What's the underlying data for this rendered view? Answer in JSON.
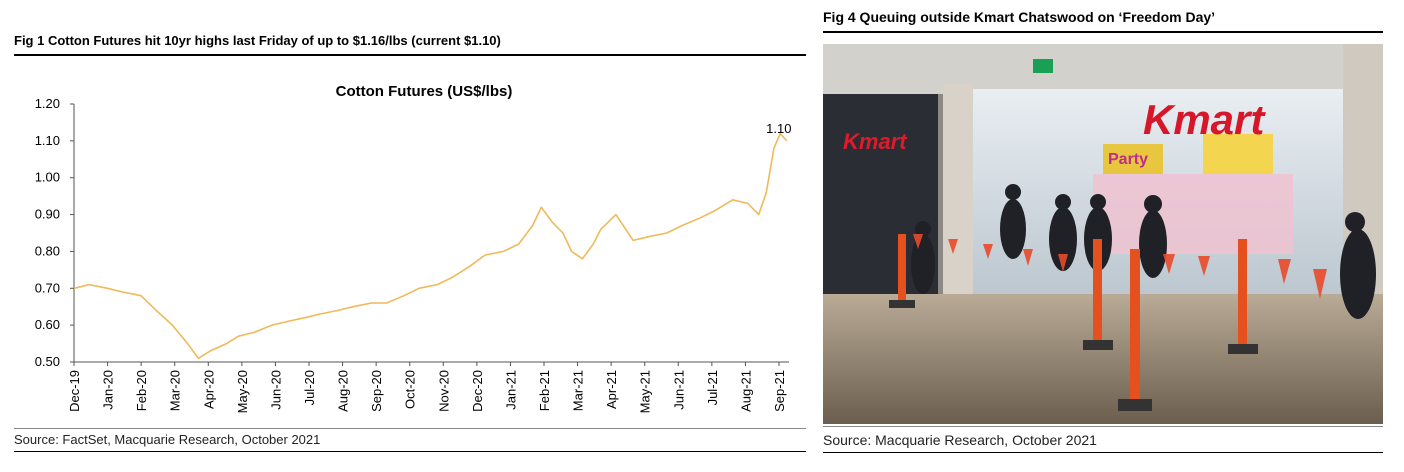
{
  "fig1": {
    "title": "Fig 1   Cotton Futures hit 10yr highs last Friday of up to $1.16/lbs (current $1.10)",
    "source": "Source: FactSet, Macquarie Research, October 2021"
  },
  "fig4": {
    "title": "Fig 4   Queuing outside Kmart Chatswood on ‘Freedom Day’",
    "source": "Source: Macquarie Research, October 2021",
    "photo_signs": {
      "kmart": "Kmart",
      "party": "Party",
      "store": "Kmart"
    }
  },
  "chart_data": {
    "type": "line",
    "title": "Cotton Futures (US$/lbs)",
    "xlabel": "",
    "ylabel": "",
    "ylim": [
      0.5,
      1.2
    ],
    "yticks": [
      "0.50",
      "0.60",
      "0.70",
      "0.80",
      "0.90",
      "1.00",
      "1.10",
      "1.20"
    ],
    "xticks": [
      "Dec-19",
      "Jan-20",
      "Feb-20",
      "Mar-20",
      "Apr-20",
      "May-20",
      "Jun-20",
      "Jul-20",
      "Aug-20",
      "Sep-20",
      "Oct-20",
      "Nov-20",
      "Dec-20",
      "Jan-21",
      "Feb-21",
      "Mar-21",
      "Apr-21",
      "May-21",
      "Jun-21",
      "Jul-21",
      "Aug-21",
      "Sep-21"
    ],
    "last_label": "1.10",
    "line_color": "#F0B95A",
    "grid": false,
    "series": [
      {
        "x": [
          "2019-12-01",
          "2019-12-15",
          "2020-01-01",
          "2020-01-15",
          "2020-02-01",
          "2020-02-15",
          "2020-03-01",
          "2020-03-15",
          "2020-03-25",
          "2020-04-05",
          "2020-04-20",
          "2020-05-01",
          "2020-05-15",
          "2020-06-01",
          "2020-06-15",
          "2020-07-01",
          "2020-07-15",
          "2020-08-01",
          "2020-08-15",
          "2020-09-01",
          "2020-09-15",
          "2020-10-01",
          "2020-10-15",
          "2020-11-01",
          "2020-11-15",
          "2020-12-01",
          "2020-12-15",
          "2021-01-01",
          "2021-01-15",
          "2021-01-28",
          "2021-02-05",
          "2021-02-15",
          "2021-02-25",
          "2021-03-05",
          "2021-03-15",
          "2021-03-25",
          "2021-04-01",
          "2021-04-15",
          "2021-05-01",
          "2021-05-15",
          "2021-06-01",
          "2021-06-15",
          "2021-07-01",
          "2021-07-15",
          "2021-08-01",
          "2021-08-15",
          "2021-08-25",
          "2021-09-01",
          "2021-09-08",
          "2021-09-14",
          "2021-09-20"
        ],
        "values": [
          0.7,
          0.71,
          0.7,
          0.69,
          0.68,
          0.64,
          0.6,
          0.55,
          0.51,
          0.53,
          0.55,
          0.57,
          0.58,
          0.6,
          0.61,
          0.62,
          0.63,
          0.64,
          0.65,
          0.66,
          0.66,
          0.68,
          0.7,
          0.71,
          0.73,
          0.76,
          0.79,
          0.8,
          0.82,
          0.87,
          0.92,
          0.88,
          0.85,
          0.8,
          0.78,
          0.82,
          0.86,
          0.9,
          0.83,
          0.84,
          0.85,
          0.87,
          0.89,
          0.91,
          0.94,
          0.93,
          0.9,
          0.96,
          1.08,
          1.12,
          1.1
        ]
      }
    ]
  }
}
